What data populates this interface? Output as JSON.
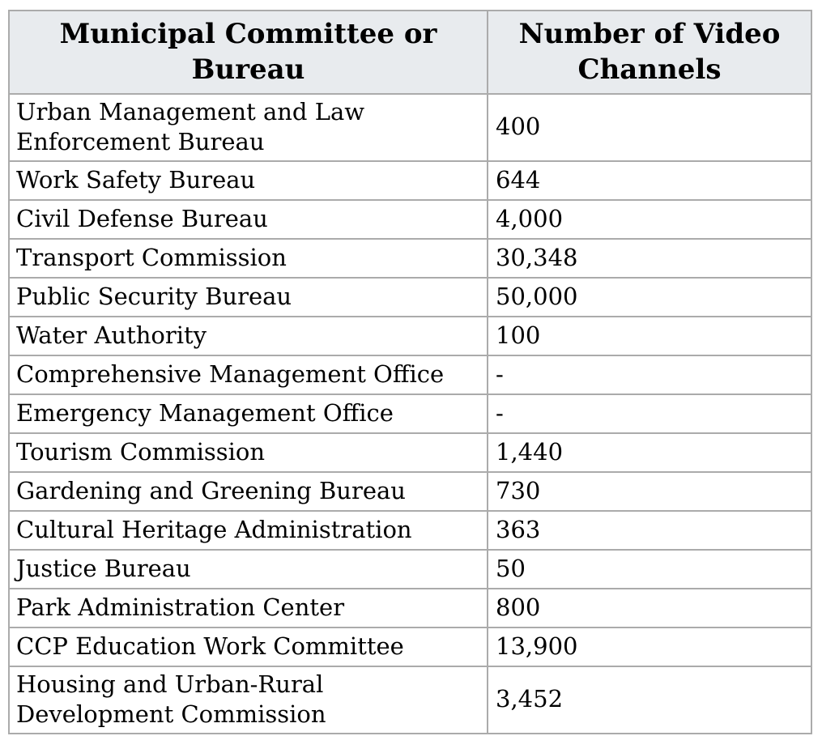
{
  "table": {
    "headers": {
      "bureau": "Municipal Committee or Bureau",
      "channels": "Number of Video Channels"
    },
    "rows": [
      {
        "bureau": "Urban Management and Law Enforcement Bureau",
        "channels": "400"
      },
      {
        "bureau": "Work Safety Bureau",
        "channels": "644"
      },
      {
        "bureau": "Civil Defense Bureau",
        "channels": "4,000"
      },
      {
        "bureau": "Transport Commission",
        "channels": "30,348"
      },
      {
        "bureau": "Public Security Bureau",
        "channels": "50,000"
      },
      {
        "bureau": "Water Authority",
        "channels": "100"
      },
      {
        "bureau": "Comprehensive Management Office",
        "channels": "-"
      },
      {
        "bureau": "Emergency Management Office",
        "channels": "-"
      },
      {
        "bureau": "Tourism Commission",
        "channels": "1,440"
      },
      {
        "bureau": "Gardening and Greening Bureau",
        "channels": "730"
      },
      {
        "bureau": "Cultural Heritage Administration",
        "channels": "363"
      },
      {
        "bureau": "Justice Bureau",
        "channels": "50"
      },
      {
        "bureau": "Park Administration Center",
        "channels": "800"
      },
      {
        "bureau": "CCP Education Work Committee",
        "channels": "13,900"
      },
      {
        "bureau": "Housing and Urban-Rural Development Commission",
        "channels": "3,452"
      }
    ],
    "colors": {
      "header_bg": "#e8ebee",
      "border": "#ababab",
      "body_bg": "#ffffff",
      "text": "#000000"
    }
  }
}
